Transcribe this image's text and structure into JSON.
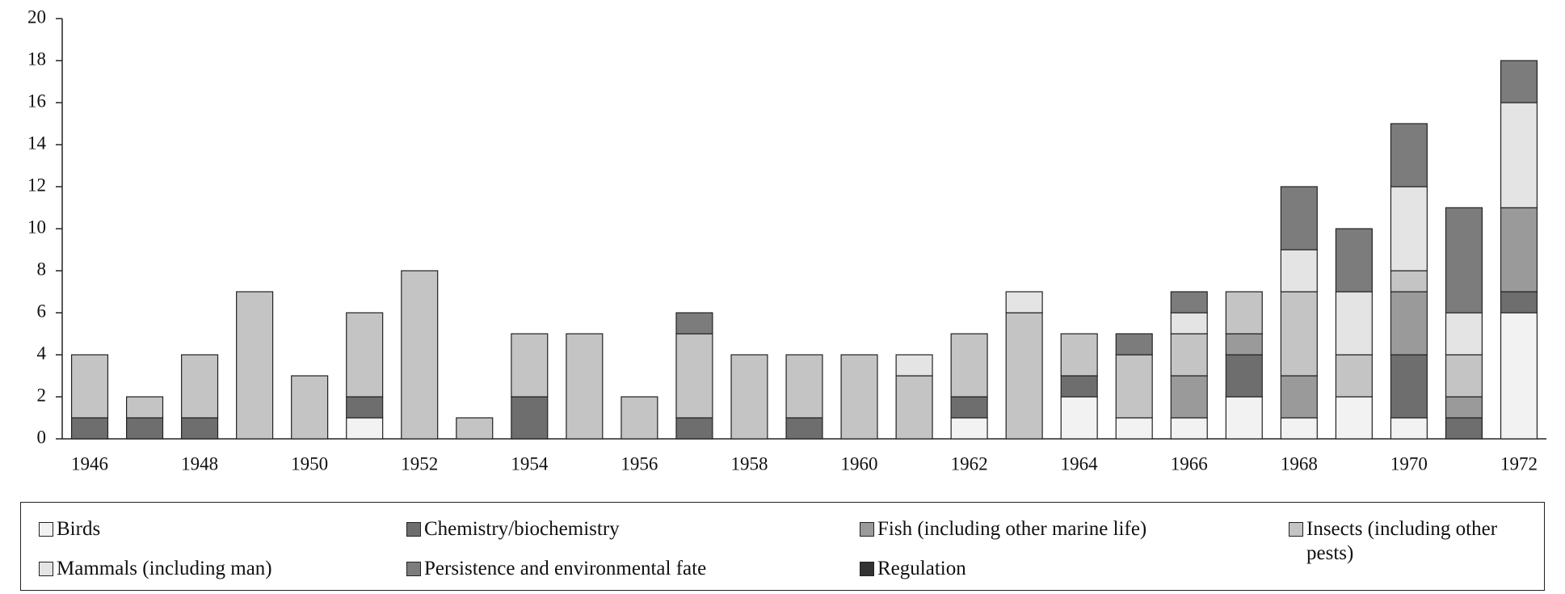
{
  "chart_data": {
    "type": "bar",
    "stacked": true,
    "categories": [
      "1946",
      null,
      "1948",
      null,
      "1950",
      null,
      "1952",
      null,
      "1954",
      null,
      "1956",
      null,
      "1958",
      null,
      "1960",
      null,
      "1962",
      null,
      "1964",
      null,
      "1966",
      null,
      "1968",
      null,
      "1970",
      null,
      "1972"
    ],
    "series": [
      {
        "name": "Birds",
        "color": "#f2f2f2",
        "values": [
          0,
          0,
          0,
          0,
          0,
          1,
          0,
          0,
          0,
          0,
          0,
          0,
          0,
          0,
          0,
          0,
          1,
          0,
          2,
          1,
          1,
          2,
          1,
          2,
          1,
          0,
          6
        ]
      },
      {
        "name": "Chemistry/biochemistry",
        "color": "#6e6e6e",
        "values": [
          1,
          1,
          1,
          0,
          0,
          1,
          0,
          0,
          2,
          0,
          0,
          1,
          0,
          1,
          0,
          0,
          1,
          0,
          1,
          0,
          0,
          2,
          0,
          0,
          3,
          1,
          1
        ]
      },
      {
        "name": "Fish (including other marine life)",
        "color": "#9a9a9a",
        "values": [
          0,
          0,
          0,
          0,
          0,
          0,
          0,
          0,
          0,
          0,
          0,
          0,
          0,
          0,
          0,
          0,
          0,
          0,
          0,
          0,
          2,
          1,
          2,
          0,
          3,
          1,
          4
        ]
      },
      {
        "name": "Insects (including other pests)",
        "color": "#c4c4c4",
        "values": [
          3,
          1,
          3,
          7,
          3,
          4,
          8,
          1,
          3,
          5,
          2,
          4,
          4,
          3,
          4,
          3,
          3,
          6,
          2,
          3,
          2,
          2,
          4,
          2,
          1,
          2,
          0
        ]
      },
      {
        "name": "Mammals (including man)",
        "color": "#e4e4e4",
        "values": [
          0,
          0,
          0,
          0,
          0,
          0,
          0,
          0,
          0,
          0,
          0,
          0,
          0,
          0,
          0,
          1,
          0,
          1,
          0,
          0,
          1,
          0,
          2,
          3,
          4,
          2,
          5
        ]
      },
      {
        "name": "Persistence and environmental fate",
        "color": "#7c7c7c",
        "values": [
          0,
          0,
          0,
          0,
          0,
          0,
          0,
          0,
          0,
          0,
          0,
          1,
          0,
          0,
          0,
          0,
          0,
          0,
          0,
          1,
          1,
          0,
          3,
          3,
          3,
          5,
          2
        ]
      },
      {
        "name": "Regulation",
        "color": "#333333",
        "values": [
          0,
          0,
          0,
          0,
          0,
          0,
          0,
          0,
          0,
          0,
          0,
          0,
          0,
          0,
          0,
          0,
          0,
          0,
          0,
          0,
          0,
          0,
          0,
          0,
          0,
          0,
          0
        ]
      }
    ],
    "ylim": [
      0,
      20
    ],
    "yticks": [
      0,
      2,
      4,
      6,
      8,
      10,
      12,
      14,
      16,
      18,
      20
    ],
    "grid": false,
    "legend": "bottom"
  }
}
